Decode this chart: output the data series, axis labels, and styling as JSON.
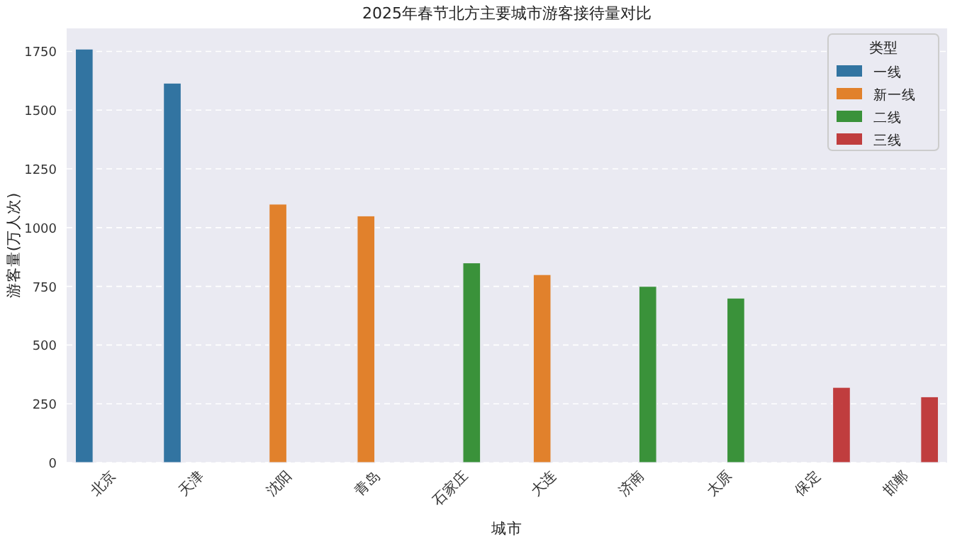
{
  "chart_data": {
    "type": "bar",
    "title": "2025年春节北方主要城市游客接待量对比",
    "xlabel": "城市",
    "ylabel": "游客量(万人次)",
    "legend_title": "类型",
    "categories": [
      "北京",
      "天津",
      "沈阳",
      "青岛",
      "石家庄",
      "大连",
      "济南",
      "太原",
      "保定",
      "邯郸"
    ],
    "series": [
      {
        "name": "一线",
        "color": "#3274a1",
        "values": [
          1760,
          1615,
          null,
          null,
          null,
          null,
          null,
          null,
          null,
          null
        ]
      },
      {
        "name": "新一线",
        "color": "#e1812c",
        "values": [
          null,
          null,
          1100,
          1050,
          null,
          800,
          null,
          null,
          null,
          null
        ]
      },
      {
        "name": "二线",
        "color": "#3a923a",
        "values": [
          null,
          null,
          null,
          null,
          850,
          null,
          750,
          700,
          null,
          null
        ]
      },
      {
        "name": "三线",
        "color": "#c03d3e",
        "values": [
          null,
          null,
          null,
          null,
          null,
          null,
          null,
          null,
          320,
          280
        ]
      }
    ],
    "ylim": [
      0,
      1848
    ],
    "yticks": [
      0,
      250,
      500,
      750,
      1000,
      1250,
      1500,
      1750
    ],
    "grid": "y",
    "legend": "top right"
  }
}
